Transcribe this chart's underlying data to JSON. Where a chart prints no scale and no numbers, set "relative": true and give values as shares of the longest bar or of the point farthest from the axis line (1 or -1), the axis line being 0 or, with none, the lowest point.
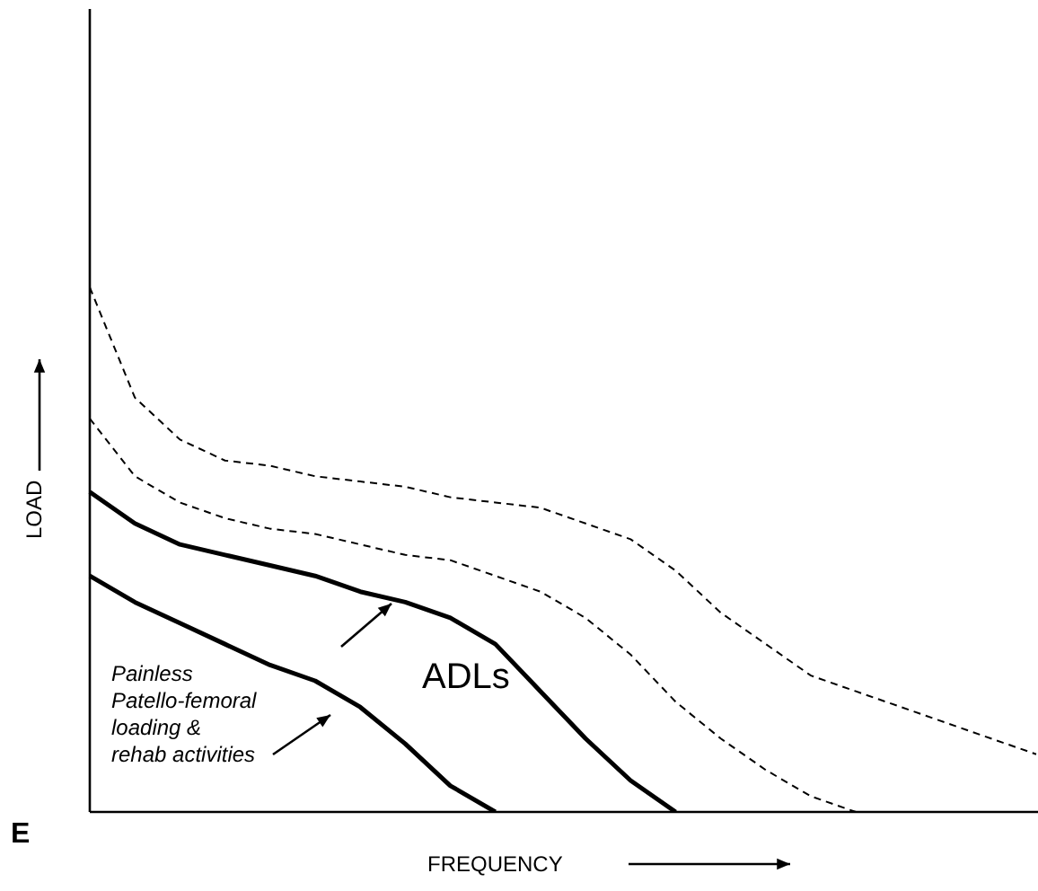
{
  "chart_data": {
    "type": "line",
    "relative": true,
    "xlabel": "FREQUENCY",
    "ylabel": "LOAD",
    "categories": [
      null,
      null,
      null,
      null,
      null,
      null,
      null,
      null,
      null,
      null,
      null,
      null,
      null,
      null,
      null,
      null,
      null,
      null,
      null,
      null,
      null,
      null
    ],
    "series": [
      {
        "color": "#000000",
        "line_style": "dashed",
        "values": [
          1.0,
          0.79,
          0.71,
          0.67,
          0.66,
          0.64,
          0.63,
          0.62,
          0.6,
          0.59,
          0.58,
          0.55,
          0.52,
          0.46,
          0.38,
          0.32,
          0.26,
          0.23,
          0.2,
          0.17,
          0.14,
          0.11
        ]
      },
      {
        "color": "#000000",
        "line_style": "dashed",
        "values": [
          0.75,
          0.64,
          0.59,
          0.56,
          0.54,
          0.53,
          0.51,
          0.49,
          0.48,
          0.45,
          0.42,
          0.37,
          0.3,
          0.21,
          0.14,
          0.08,
          0.03,
          0,
          null,
          null,
          null,
          null
        ]
      },
      {
        "color": "#000000",
        "line_style": "solid",
        "values": [
          0.61,
          0.55,
          0.51,
          0.49,
          0.47,
          0.45,
          0.42,
          0.4,
          0.37,
          0.32,
          0.23,
          0.14,
          0.06,
          0,
          null,
          null,
          null,
          null,
          null,
          null,
          null,
          null
        ]
      },
      {
        "color": "#000000",
        "line_style": "solid",
        "values": [
          0.45,
          0.4,
          0.36,
          0.32,
          0.28,
          0.25,
          0.2,
          0.13,
          0.05,
          0,
          null,
          null,
          null,
          null,
          null,
          null,
          null,
          null,
          null,
          null,
          null,
          null
        ]
      }
    ],
    "annotations": [
      "ADLs",
      "Painless\nPatello-femoral\nloading &\nrehab activities",
      "E"
    ],
    "grid": false,
    "legend": false,
    "marker": "none"
  }
}
